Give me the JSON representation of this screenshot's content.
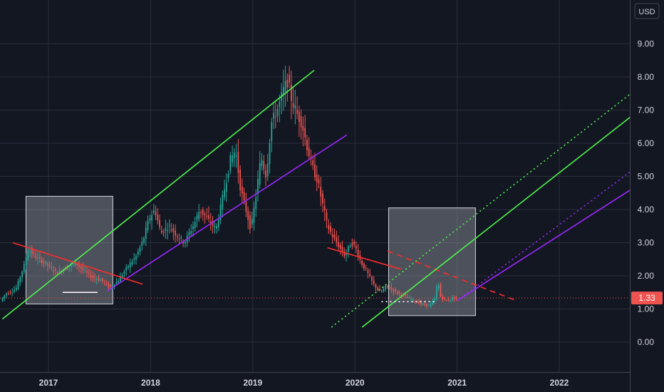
{
  "chart_data": {
    "type": "candlestick",
    "currency": "USD",
    "current_price": 1.33,
    "current_label": "1.33",
    "ylim": [
      -0.9,
      10.6
    ],
    "y_ticks": [
      "0.00",
      "1.00",
      "2.00",
      "3.00",
      "4.00",
      "5.00",
      "6.00",
      "7.00",
      "8.00",
      "9.00"
    ],
    "x_ticks": [
      "2017",
      "2018",
      "2019",
      "2020",
      "2021",
      "2022"
    ],
    "xlim": [
      2016.55,
      2022.7
    ],
    "grid": true,
    "colors": {
      "background": "#131722",
      "grid": "#2a2e39",
      "up": "#26a69a",
      "down": "#ef5350",
      "green_line": "#4ef24e",
      "purple_line": "#9c27ff",
      "red_line": "#ff2b2b",
      "price_line": "#ef5350",
      "box": "#9598a1"
    },
    "price_path": [
      [
        2016.55,
        1.25
      ],
      [
        2016.6,
        1.45
      ],
      [
        2016.7,
        1.6
      ],
      [
        2016.78,
        2.3
      ],
      [
        2016.82,
        2.8
      ],
      [
        2016.9,
        2.55
      ],
      [
        2017.0,
        2.35
      ],
      [
        2017.1,
        2.1
      ],
      [
        2017.2,
        2.25
      ],
      [
        2017.28,
        2.4
      ],
      [
        2017.35,
        2.2
      ],
      [
        2017.45,
        1.95
      ],
      [
        2017.55,
        1.85
      ],
      [
        2017.62,
        1.65
      ],
      [
        2017.7,
        1.85
      ],
      [
        2017.8,
        2.3
      ],
      [
        2017.88,
        2.6
      ],
      [
        2017.95,
        3.1
      ],
      [
        2018.0,
        3.7
      ],
      [
        2018.06,
        4.0
      ],
      [
        2018.12,
        3.3
      ],
      [
        2018.2,
        3.5
      ],
      [
        2018.28,
        3.2
      ],
      [
        2018.35,
        3.0
      ],
      [
        2018.45,
        3.6
      ],
      [
        2018.5,
        4.0
      ],
      [
        2018.58,
        3.7
      ],
      [
        2018.66,
        3.4
      ],
      [
        2018.72,
        4.3
      ],
      [
        2018.8,
        5.5
      ],
      [
        2018.85,
        5.8
      ],
      [
        2018.9,
        4.6
      ],
      [
        2018.96,
        3.9
      ],
      [
        2019.0,
        3.4
      ],
      [
        2019.05,
        4.4
      ],
      [
        2019.1,
        5.6
      ],
      [
        2019.15,
        5.0
      ],
      [
        2019.2,
        6.6
      ],
      [
        2019.27,
        7.1
      ],
      [
        2019.32,
        7.6
      ],
      [
        2019.36,
        7.9
      ],
      [
        2019.4,
        7.3
      ],
      [
        2019.45,
        6.9
      ],
      [
        2019.5,
        6.6
      ],
      [
        2019.55,
        5.9
      ],
      [
        2019.6,
        5.3
      ],
      [
        2019.65,
        4.9
      ],
      [
        2019.7,
        4.2
      ],
      [
        2019.75,
        3.5
      ],
      [
        2019.8,
        3.2
      ],
      [
        2019.86,
        2.9
      ],
      [
        2019.92,
        2.6
      ],
      [
        2019.98,
        3.0
      ],
      [
        2020.02,
        2.9
      ],
      [
        2020.08,
        2.4
      ],
      [
        2020.14,
        2.1
      ],
      [
        2020.2,
        1.75
      ],
      [
        2020.27,
        1.5
      ],
      [
        2020.33,
        1.7
      ],
      [
        2020.4,
        1.55
      ],
      [
        2020.46,
        1.45
      ],
      [
        2020.53,
        1.35
      ],
      [
        2020.6,
        1.25
      ],
      [
        2020.67,
        1.15
      ],
      [
        2020.75,
        1.1
      ],
      [
        2020.8,
        1.3
      ],
      [
        2020.83,
        1.85
      ],
      [
        2020.86,
        1.35
      ],
      [
        2020.92,
        1.25
      ],
      [
        2020.98,
        1.33
      ],
      [
        2021.0,
        1.33
      ]
    ],
    "trendlines": [
      {
        "color": "green_line",
        "style": "solid",
        "p1": [
          2016.55,
          0.7
        ],
        "p2": [
          2019.6,
          8.2
        ]
      },
      {
        "color": "purple_line",
        "style": "solid",
        "p1": [
          2017.58,
          1.55
        ],
        "p2": [
          2019.92,
          6.25
        ]
      },
      {
        "color": "red_line",
        "style": "solid",
        "p1": [
          2016.65,
          3.0
        ],
        "p2": [
          2017.92,
          1.75
        ]
      },
      {
        "color": "red_line",
        "style": "solid",
        "p1": [
          2019.73,
          2.85
        ],
        "p2": [
          2020.45,
          2.2
        ]
      },
      {
        "color": "red_line",
        "style": "dashed",
        "p1": [
          2020.32,
          2.75
        ],
        "p2": [
          2021.58,
          1.25
        ]
      },
      {
        "color": "green_line",
        "style": "solid",
        "p1": [
          2020.07,
          0.45
        ],
        "p2": [
          2022.7,
          6.8
        ]
      },
      {
        "color": "green_line",
        "style": "dotted",
        "p1": [
          2019.77,
          0.45
        ],
        "p2": [
          2022.7,
          7.5
        ]
      },
      {
        "color": "purple_line",
        "style": "solid",
        "p1": [
          2021.0,
          1.25
        ],
        "p2": [
          2022.7,
          4.6
        ]
      },
      {
        "color": "purple_line",
        "style": "dotted",
        "p1": [
          2021.0,
          1.25
        ],
        "p2": [
          2022.7,
          5.15
        ]
      }
    ],
    "segments": [
      {
        "color": "#ffffff",
        "style": "solid",
        "p1": [
          2017.14,
          1.5
        ],
        "p2": [
          2017.48,
          1.5
        ]
      },
      {
        "color": "#ffffff",
        "style": "dotted",
        "p1": [
          2020.26,
          1.22
        ],
        "p2": [
          2020.78,
          1.22
        ]
      }
    ],
    "boxes": [
      {
        "x1": 2016.78,
        "x2": 2017.63,
        "y1": 1.15,
        "y2": 4.4
      },
      {
        "x1": 2020.33,
        "x2": 2021.18,
        "y1": 0.8,
        "y2": 4.05
      }
    ]
  }
}
